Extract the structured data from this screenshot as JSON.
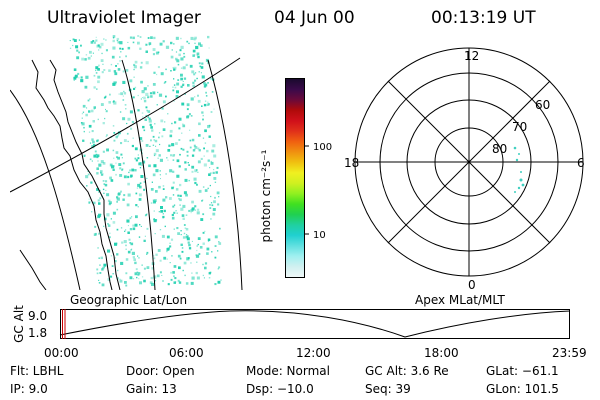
{
  "header": {
    "instrument": "Ultraviolet Imager",
    "date": "04 Jun 00",
    "time": "00:13:19 UT"
  },
  "colorbar": {
    "unit_label": "photon cm⁻²s⁻¹",
    "tick_labels": [
      "100",
      "10"
    ],
    "colors": [
      "#1a0a2e",
      "#3a0a4a",
      "#6a0a3a",
      "#b00a0a",
      "#d0101a",
      "#e0301a",
      "#f06010",
      "#f09010",
      "#f0c010",
      "#f0f020",
      "#d0f020",
      "#90f020",
      "#40e020",
      "#20d050",
      "#20d0a0",
      "#20d0d0",
      "#60e0e0",
      "#a0f0f0",
      "#d0f0f0",
      "#f0f8f8"
    ]
  },
  "geo_panel": {
    "label": "Geographic Lat/Lon",
    "emission_color": "#20d0b0"
  },
  "polar_panel": {
    "label": "Apex MLat/MLT",
    "mlt_labels": {
      "top": "12",
      "left": "18",
      "right": "6",
      "bottom": "0"
    },
    "lat_labels": [
      "60",
      "70",
      "80"
    ]
  },
  "altitude_plot": {
    "y_title": "GC Alt",
    "y_ticks": [
      "9.0",
      "1.8"
    ],
    "x_ticks": [
      "00:00",
      "06:00",
      "12:00",
      "18:00",
      "23:59"
    ],
    "marker_color": "#cc0000"
  },
  "footer": {
    "row1": {
      "flt": "Flt: LBHL",
      "door": "Door: Open",
      "mode": "Mode: Normal",
      "gcalt": "GC Alt: 3.6 Re",
      "glat": "GLat: −61.1"
    },
    "row2": {
      "ip": "IP: 9.0",
      "gain": "Gain: 13",
      "dsp": "Dsp: −10.0",
      "seq": "Seq: 39",
      "glon": "GLon: 101.5"
    }
  }
}
